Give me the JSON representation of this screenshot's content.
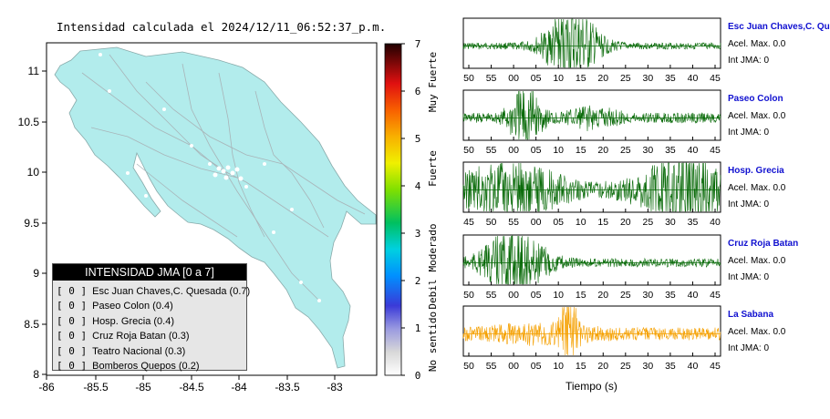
{
  "map": {
    "title": "Intensidad calculada el 2024/12/11_06:52:37_p.m.",
    "x_ticks": [
      "-86",
      "-85.5",
      "-85",
      "-84.5",
      "-84",
      "-83.5",
      "-83"
    ],
    "y_ticks": [
      "11",
      "10.5",
      "10",
      "9.5",
      "9",
      "8.5",
      "8"
    ],
    "fill_color": "#b2ecec",
    "ocean_color": "#ffffff"
  },
  "colorbar": {
    "ticks": [
      "0",
      "1",
      "2",
      "3",
      "4",
      "5",
      "6",
      "7"
    ],
    "category_labels": [
      "No sentido",
      "Debil",
      "Moderado",
      "Fuerte",
      "Muy Fuerte"
    ]
  },
  "legend": {
    "title": "INTENSIDAD JMA [0 a 7]",
    "items": [
      {
        "code": "[ 0 ]",
        "label": "Esc Juan Chaves,C. Quesada (0.7)"
      },
      {
        "code": "[ 0 ]",
        "label": "Paseo Colon (0.4)"
      },
      {
        "code": "[ 0 ]",
        "label": "Hosp. Grecia (0.4)"
      },
      {
        "code": "[ 0 ]",
        "label": "Cruz Roja Batan (0.3)"
      },
      {
        "code": "[ 0 ]",
        "label": "Teatro Nacional (0.3)"
      },
      {
        "code": "[ 0 ]",
        "label": "Bomberos Quepos (0.2)"
      }
    ]
  },
  "waveforms": [
    {
      "name": "Esc Juan Chaves,C. Qu",
      "acel": "Acel. Max. 0.0",
      "int": "Int JMA: 0",
      "color": "#0a6b0a",
      "ticks": [
        "50",
        "55",
        "00",
        "05",
        "10",
        "15",
        "20",
        "25",
        "30",
        "35",
        "40",
        "45"
      ]
    },
    {
      "name": "Paseo Colon",
      "acel": "Acel. Max. 0.0",
      "int": "Int JMA: 0",
      "color": "#0a6b0a",
      "ticks": [
        "50",
        "55",
        "00",
        "05",
        "10",
        "15",
        "20",
        "25",
        "30",
        "35",
        "40",
        "45"
      ]
    },
    {
      "name": "Hosp. Grecia",
      "acel": "Acel. Max. 0.0",
      "int": "Int JMA: 0",
      "color": "#0a6b0a",
      "ticks": [
        "45",
        "50",
        "55",
        "00",
        "05",
        "10",
        "15",
        "20",
        "25",
        "30",
        "35",
        "40"
      ]
    },
    {
      "name": "Cruz Roja Batan",
      "acel": "Acel. Max. 0.0",
      "int": "Int JMA: 0",
      "color": "#0a6b0a",
      "ticks": [
        "50",
        "55",
        "00",
        "05",
        "10",
        "15",
        "20",
        "25",
        "30",
        "35",
        "40",
        "45"
      ]
    },
    {
      "name": "La Sabana",
      "acel": "Acel. Max. 0.0",
      "int": "Int JMA: 0",
      "color": "#f5a000",
      "ticks": [
        "50",
        "55",
        "00",
        "05",
        "10",
        "15",
        "20",
        "25",
        "30",
        "35",
        "40",
        "45"
      ]
    }
  ],
  "time_axis_label": "Tiempo (s)"
}
